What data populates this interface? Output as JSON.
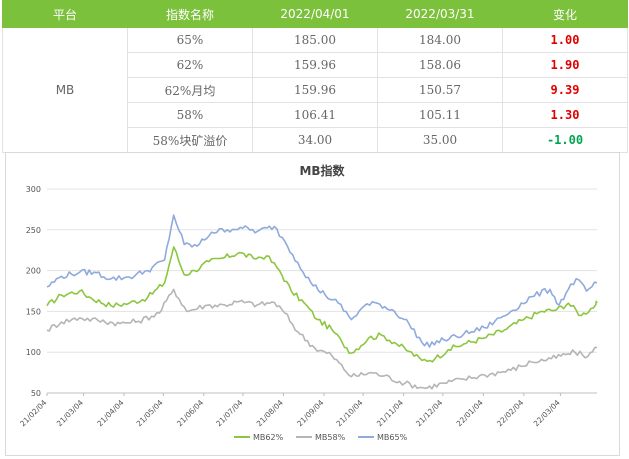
{
  "table": {
    "headers": [
      "平台",
      "指数名称",
      "2022/04/01",
      "2022/03/31",
      "变化"
    ],
    "platform": "MB",
    "rows": [
      {
        "name": "65%",
        "d1": "185.00",
        "d2": "184.00",
        "change": "1.00",
        "change_color": "#e00000"
      },
      {
        "name": "62%",
        "d1": "159.96",
        "d2": "158.06",
        "change": "1.90",
        "change_color": "#e00000"
      },
      {
        "name": "62%月均",
        "d1": "159.96",
        "d2": "150.57",
        "change": "9.39",
        "change_color": "#e00000"
      },
      {
        "name": "58%",
        "d1": "106.41",
        "d2": "105.11",
        "change": "1.30",
        "change_color": "#e00000"
      },
      {
        "name": "58%块矿溢价",
        "d1": "34.00",
        "d2": "35.00",
        "change": "-1.00",
        "change_color": "#00a650"
      }
    ]
  },
  "chart_data": {
    "type": "line",
    "title": "MB指数",
    "ylim": [
      50,
      300
    ],
    "yticks": [
      50,
      100,
      150,
      200,
      250,
      300
    ],
    "xlim": [
      "2021-02-04",
      "2022-04-01"
    ],
    "xticks": [
      "21/02/04",
      "21/03/04",
      "21/04/04",
      "21/05/04",
      "21/06/04",
      "21/07/04",
      "21/08/04",
      "21/09/04",
      "21/10/04",
      "21/11/04",
      "21/12/04",
      "22/01/04",
      "22/02/04",
      "22/03/04"
    ],
    "grid": true,
    "legend_position": "bottom",
    "series": [
      {
        "name": "MB62%",
        "color": "#8cc63f",
        "points": [
          [
            "2021-02-04",
            157
          ],
          [
            "2021-02-15",
            170
          ],
          [
            "2021-03-01",
            175
          ],
          [
            "2021-03-10",
            166
          ],
          [
            "2021-03-25",
            157
          ],
          [
            "2021-04-08",
            160
          ],
          [
            "2021-04-22",
            167
          ],
          [
            "2021-05-05",
            185
          ],
          [
            "2021-05-12",
            229
          ],
          [
            "2021-05-20",
            195
          ],
          [
            "2021-05-28",
            200
          ],
          [
            "2021-06-08",
            211
          ],
          [
            "2021-06-20",
            216
          ],
          [
            "2021-07-01",
            222
          ],
          [
            "2021-07-12",
            215
          ],
          [
            "2021-07-22",
            218
          ],
          [
            "2021-08-01",
            200
          ],
          [
            "2021-08-10",
            175
          ],
          [
            "2021-08-20",
            160
          ],
          [
            "2021-08-30",
            140
          ],
          [
            "2021-09-10",
            128
          ],
          [
            "2021-09-18",
            112
          ],
          [
            "2021-09-25",
            99
          ],
          [
            "2021-10-08",
            117
          ],
          [
            "2021-10-18",
            121
          ],
          [
            "2021-10-28",
            112
          ],
          [
            "2021-11-08",
            101
          ],
          [
            "2021-11-18",
            90
          ],
          [
            "2021-11-28",
            92
          ],
          [
            "2021-12-08",
            103
          ],
          [
            "2021-12-20",
            110
          ],
          [
            "2022-01-04",
            117
          ],
          [
            "2022-01-20",
            127
          ],
          [
            "2022-02-04",
            140
          ],
          [
            "2022-02-18",
            150
          ],
          [
            "2022-03-01",
            152
          ],
          [
            "2022-03-10",
            160
          ],
          [
            "2022-03-20",
            145
          ],
          [
            "2022-03-31",
            158
          ],
          [
            "2022-04-01",
            160
          ]
        ]
      },
      {
        "name": "MB58%",
        "color": "#b5b5b5",
        "points": [
          [
            "2021-02-04",
            127
          ],
          [
            "2021-02-15",
            137
          ],
          [
            "2021-03-01",
            142
          ],
          [
            "2021-03-15",
            139
          ],
          [
            "2021-04-01",
            135
          ],
          [
            "2021-04-15",
            138
          ],
          [
            "2021-05-01",
            148
          ],
          [
            "2021-05-12",
            177
          ],
          [
            "2021-05-22",
            150
          ],
          [
            "2021-06-05",
            157
          ],
          [
            "2021-06-20",
            158
          ],
          [
            "2021-07-01",
            162
          ],
          [
            "2021-07-15",
            158
          ],
          [
            "2021-07-28",
            161
          ],
          [
            "2021-08-05",
            148
          ],
          [
            "2021-08-15",
            125
          ],
          [
            "2021-08-28",
            105
          ],
          [
            "2021-09-10",
            96
          ],
          [
            "2021-09-25",
            70
          ],
          [
            "2021-10-10",
            75
          ],
          [
            "2021-10-20",
            71
          ],
          [
            "2021-11-05",
            62
          ],
          [
            "2021-11-20",
            56
          ],
          [
            "2021-12-05",
            62
          ],
          [
            "2021-12-20",
            67
          ],
          [
            "2022-01-05",
            72
          ],
          [
            "2022-01-25",
            78
          ],
          [
            "2022-02-10",
            88
          ],
          [
            "2022-02-25",
            92
          ],
          [
            "2022-03-08",
            97
          ],
          [
            "2022-03-15",
            100
          ],
          [
            "2022-03-25",
            95
          ],
          [
            "2022-04-01",
            106
          ]
        ]
      },
      {
        "name": "MB65%",
        "color": "#8faadc",
        "points": [
          [
            "2021-02-04",
            180
          ],
          [
            "2021-02-15",
            193
          ],
          [
            "2021-03-01",
            198
          ],
          [
            "2021-03-12",
            198
          ],
          [
            "2021-03-25",
            190
          ],
          [
            "2021-04-08",
            192
          ],
          [
            "2021-04-22",
            200
          ],
          [
            "2021-05-05",
            213
          ],
          [
            "2021-05-12",
            268
          ],
          [
            "2021-05-20",
            232
          ],
          [
            "2021-05-30",
            230
          ],
          [
            "2021-06-10",
            247
          ],
          [
            "2021-06-22",
            250
          ],
          [
            "2021-07-02",
            253
          ],
          [
            "2021-07-15",
            248
          ],
          [
            "2021-07-28",
            254
          ],
          [
            "2021-08-05",
            236
          ],
          [
            "2021-08-15",
            210
          ],
          [
            "2021-08-25",
            185
          ],
          [
            "2021-09-05",
            170
          ],
          [
            "2021-09-15",
            160
          ],
          [
            "2021-09-25",
            140
          ],
          [
            "2021-10-05",
            157
          ],
          [
            "2021-10-15",
            160
          ],
          [
            "2021-10-28",
            150
          ],
          [
            "2021-11-08",
            135
          ],
          [
            "2021-11-20",
            108
          ],
          [
            "2021-12-05",
            115
          ],
          [
            "2021-12-20",
            122
          ],
          [
            "2022-01-05",
            130
          ],
          [
            "2022-01-25",
            150
          ],
          [
            "2022-02-10",
            168
          ],
          [
            "2022-02-24",
            177
          ],
          [
            "2022-03-03",
            158
          ],
          [
            "2022-03-10",
            177
          ],
          [
            "2022-03-16",
            190
          ],
          [
            "2022-03-24",
            175
          ],
          [
            "2022-04-01",
            185
          ]
        ]
      }
    ]
  }
}
